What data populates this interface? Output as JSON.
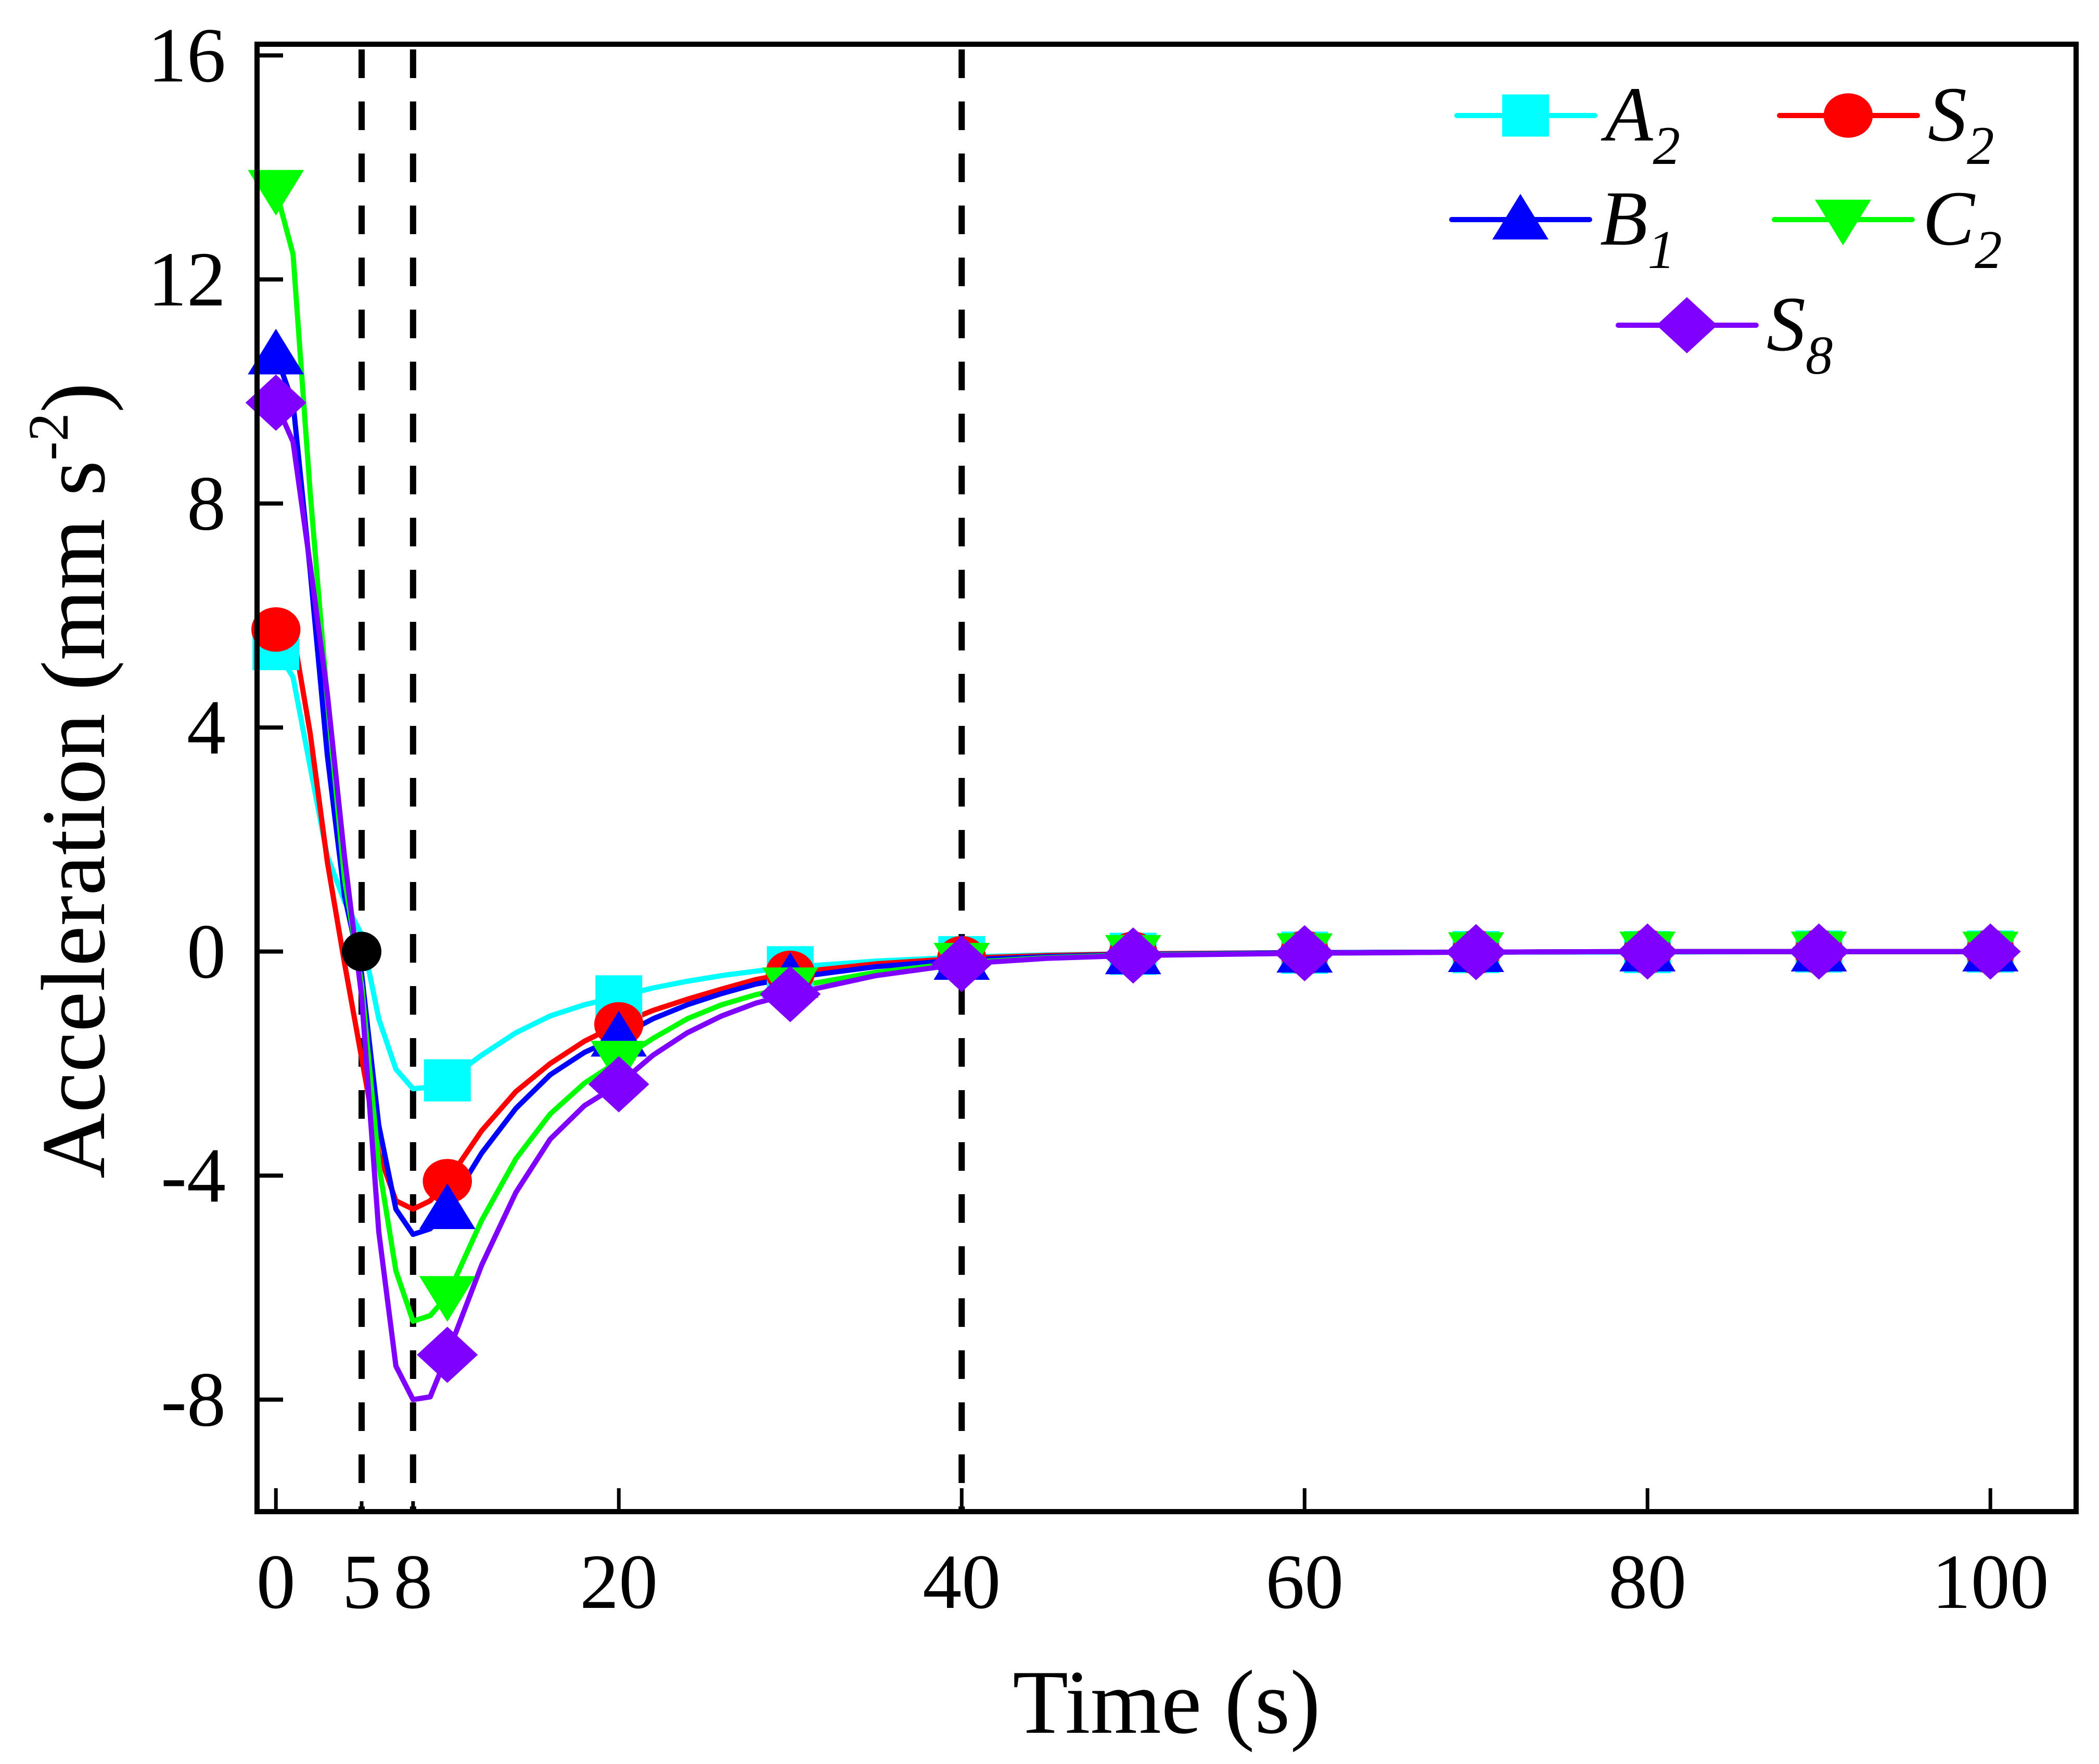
{
  "chart_data": {
    "type": "line",
    "title": "",
    "xlabel": "Time (s)",
    "ylabel": "Acceleration (mm s",
    "ylabel_sup": "-2",
    "ylabel_close": ")",
    "xlim": [
      -1.1,
      105
    ],
    "ylim": [
      -10,
      16.2
    ],
    "x_ticks": [
      0,
      5,
      8,
      20,
      40,
      60,
      80,
      100
    ],
    "x_tick_labels": [
      "0",
      "5",
      "8",
      "20",
      "40",
      "60",
      "80",
      "100"
    ],
    "y_ticks": [
      -8,
      -4,
      0,
      4,
      8,
      12,
      16
    ],
    "y_tick_labels": [
      "-8",
      "-4",
      "0",
      "4",
      "8",
      "12",
      "16"
    ],
    "grid": false,
    "legend_position": "top-right",
    "reference_lines_x": [
      5,
      8,
      40
    ],
    "highlight_point": {
      "x": 5,
      "y": 0,
      "color": "#000000"
    },
    "x": [
      0,
      1,
      2,
      3,
      4,
      5,
      6,
      7,
      8,
      9,
      10,
      12,
      14,
      16,
      18,
      20,
      22,
      24,
      26,
      28,
      30,
      35,
      40,
      45,
      50,
      60,
      70,
      80,
      90,
      100
    ],
    "marker_x": [
      0,
      10,
      20,
      30,
      40,
      50,
      60,
      70,
      80,
      90,
      100
    ],
    "series": [
      {
        "name": "A",
        "sub": "2",
        "color": "#00FFFF",
        "marker": "square",
        "values": [
          5.4,
          4.9,
          3.3,
          1.7,
          0.9,
          0.3,
          -1.2,
          -2.1,
          -2.45,
          -2.42,
          -2.3,
          -1.85,
          -1.45,
          -1.15,
          -0.95,
          -0.8,
          -0.65,
          -0.53,
          -0.43,
          -0.35,
          -0.28,
          -0.17,
          -0.1,
          -0.06,
          -0.04,
          -0.02,
          -0.01,
          -0.01,
          0.0,
          0.0
        ]
      },
      {
        "name": "S",
        "sub": "2",
        "color": "#FF0000",
        "marker": "circle",
        "values": [
          5.75,
          5.7,
          3.9,
          1.6,
          -0.2,
          -1.9,
          -3.6,
          -4.45,
          -4.6,
          -4.45,
          -4.1,
          -3.2,
          -2.5,
          -2.0,
          -1.6,
          -1.3,
          -1.05,
          -0.85,
          -0.67,
          -0.5,
          -0.38,
          -0.22,
          -0.12,
          -0.07,
          -0.04,
          -0.02,
          -0.01,
          0.0,
          0.0,
          0.0
        ]
      },
      {
        "name": "B",
        "sub": "1",
        "color": "#0000FF",
        "marker": "triangle-up",
        "values": [
          10.66,
          9.8,
          6.8,
          3.5,
          1.0,
          -0.4,
          -3.1,
          -4.6,
          -5.05,
          -4.95,
          -4.6,
          -3.6,
          -2.8,
          -2.2,
          -1.8,
          -1.52,
          -1.2,
          -0.95,
          -0.75,
          -0.58,
          -0.47,
          -0.27,
          -0.15,
          -0.09,
          -0.05,
          -0.02,
          -0.01,
          0.0,
          0.0,
          0.0
        ]
      },
      {
        "name": "C",
        "sub": "2",
        "color": "#00FF00",
        "marker": "triangle-down",
        "values": [
          13.6,
          12.45,
          8.2,
          4.5,
          1.3,
          -0.6,
          -3.8,
          -5.7,
          -6.6,
          -6.5,
          -6.15,
          -4.8,
          -3.7,
          -2.9,
          -2.35,
          -1.95,
          -1.55,
          -1.2,
          -0.95,
          -0.77,
          -0.64,
          -0.37,
          -0.2,
          -0.11,
          -0.06,
          -0.03,
          -0.01,
          0.0,
          0.0,
          0.0
        ]
      },
      {
        "name": "S",
        "sub": "8",
        "color": "#7F00FF",
        "marker": "diamond",
        "values": [
          9.8,
          9.1,
          6.9,
          4.6,
          1.7,
          -0.8,
          -5.0,
          -7.4,
          -8.0,
          -7.95,
          -7.2,
          -5.6,
          -4.3,
          -3.35,
          -2.75,
          -2.37,
          -1.85,
          -1.45,
          -1.15,
          -0.92,
          -0.76,
          -0.43,
          -0.22,
          -0.12,
          -0.07,
          -0.03,
          -0.01,
          0.0,
          0.0,
          0.0
        ]
      }
    ],
    "legend": [
      {
        "name": "A",
        "sub": "2"
      },
      {
        "name": "S",
        "sub": "2"
      },
      {
        "name": "B",
        "sub": "1"
      },
      {
        "name": "C",
        "sub": "2"
      },
      {
        "name": "S",
        "sub": "8"
      }
    ]
  }
}
